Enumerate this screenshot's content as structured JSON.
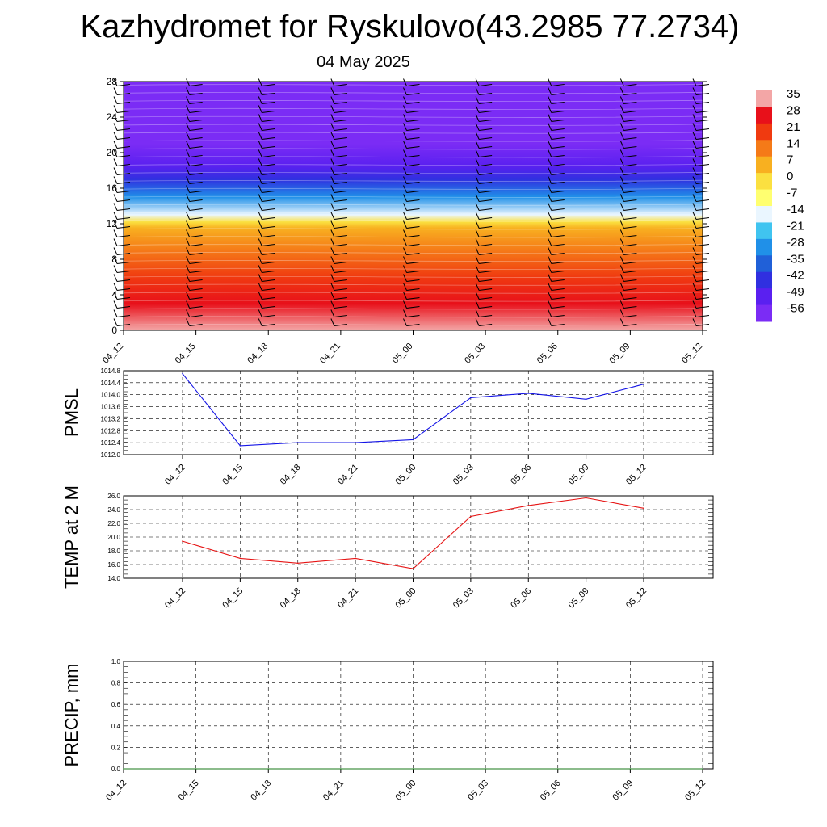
{
  "title": "Kazhydromet for Ryskulovo(43.2985 77.2734)",
  "date": "04 May 2025",
  "chart_data": [
    {
      "type": "heatmap",
      "variable": "temperature cross-section with wind barbs",
      "x_tick_labels": [
        "04_12",
        "04_15",
        "04_18",
        "04_21",
        "05_00",
        "05_03",
        "05_06",
        "05_09",
        "05_12"
      ],
      "y_tick_labels": [
        "0",
        "4",
        "8",
        "12",
        "16",
        "20",
        "24",
        "28"
      ],
      "ylim": [
        0,
        28
      ],
      "colorbar_labels": [
        "35",
        "28",
        "21",
        "14",
        "7",
        "0",
        "-7",
        "-14",
        "-21",
        "-28",
        "-35",
        "-42",
        "-49",
        "-56"
      ],
      "colorbar_colors": [
        "#f3a6a6",
        "#e8101a",
        "#f03a10",
        "#f57a18",
        "#f8b020",
        "#fbe040",
        "#ffff70",
        "#eaf6ff",
        "#40c4f0",
        "#2090e8",
        "#2060d8",
        "#3030e0",
        "#5a20f0",
        "#7b2cf5"
      ],
      "isotherm_profile": [
        {
          "height": 0,
          "temp": 35
        },
        {
          "height": 3,
          "temp": 28
        },
        {
          "height": 6,
          "temp": 21
        },
        {
          "height": 9,
          "temp": 14
        },
        {
          "height": 11.5,
          "temp": 7
        },
        {
          "height": 12.2,
          "temp": 0
        },
        {
          "height": 13,
          "temp": -14
        },
        {
          "height": 15,
          "temp": -28
        },
        {
          "height": 17,
          "temp": -42
        },
        {
          "height": 18.5,
          "temp": -49
        },
        {
          "height": 21,
          "temp": -56
        },
        {
          "height": 28,
          "temp": -56
        }
      ]
    },
    {
      "type": "line",
      "ylabel": "PMSL",
      "categories": [
        "04_12",
        "04_15",
        "04_18",
        "04_21",
        "05_00",
        "05_03",
        "05_06",
        "05_09",
        "05_12"
      ],
      "values": [
        1014.7,
        1012.3,
        1012.4,
        1012.4,
        1012.5,
        1013.9,
        1014.05,
        1013.85,
        1014.35
      ],
      "y_tick_labels": [
        "1012.0",
        "1012.4",
        "1012.8",
        "1013.2",
        "1013.6",
        "1014.0",
        "1014.4",
        "1014.8"
      ],
      "ylim": [
        1012.0,
        1014.8
      ],
      "line_color": "#1414e6",
      "grid": true
    },
    {
      "type": "line",
      "ylabel": "TEMP at 2 M",
      "categories": [
        "04_12",
        "04_15",
        "04_18",
        "04_21",
        "05_00",
        "05_03",
        "05_06",
        "05_09",
        "05_12"
      ],
      "values": [
        19.4,
        16.9,
        16.2,
        16.9,
        15.4,
        23.0,
        24.6,
        25.7,
        24.2
      ],
      "y_tick_labels": [
        "14.0",
        "16.0",
        "18.0",
        "20.0",
        "22.0",
        "24.0",
        "26.0"
      ],
      "ylim": [
        14.0,
        26.0
      ],
      "line_color": "#e61414",
      "grid": true
    },
    {
      "type": "line",
      "ylabel": "PRECIP, mm",
      "categories": [
        "04_12",
        "04_15",
        "04_18",
        "04_21",
        "05_00",
        "05_03",
        "05_06",
        "05_09",
        "05_12"
      ],
      "values": [
        0,
        0,
        0,
        0,
        0,
        0,
        0,
        0,
        0
      ],
      "y_tick_labels": [
        "0.0",
        "0.2",
        "0.4",
        "0.6",
        "0.8",
        "1.0"
      ],
      "ylim": [
        0.0,
        1.0
      ],
      "line_color": "#1a7a1a",
      "grid": true
    }
  ]
}
